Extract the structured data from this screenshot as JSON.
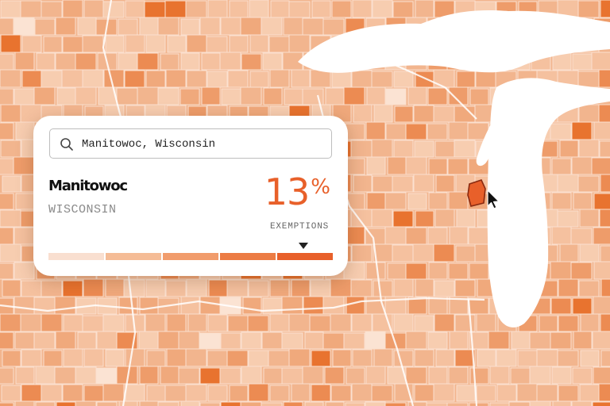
{
  "search": {
    "value": "Manitowoc, Wisconsin",
    "icon": "search-icon"
  },
  "selection": {
    "county": "Manitowoc",
    "state": "WISCONSIN",
    "value": "13",
    "unit": "%",
    "metric_label": "EXEMPTIONS",
    "scale_bin_selected": 4
  },
  "legend": {
    "bins": 5,
    "colors": [
      "#f9dfd0",
      "#f5bc96",
      "#f19c6c",
      "#ec7c44",
      "#e8602a"
    ]
  },
  "map": {
    "highlighted_county": "Manitowoc",
    "colors": {
      "water": "#ffffff",
      "base": "#f2b58e",
      "highlight_fill": "#e8602a",
      "highlight_stroke": "#8a2a10"
    }
  }
}
